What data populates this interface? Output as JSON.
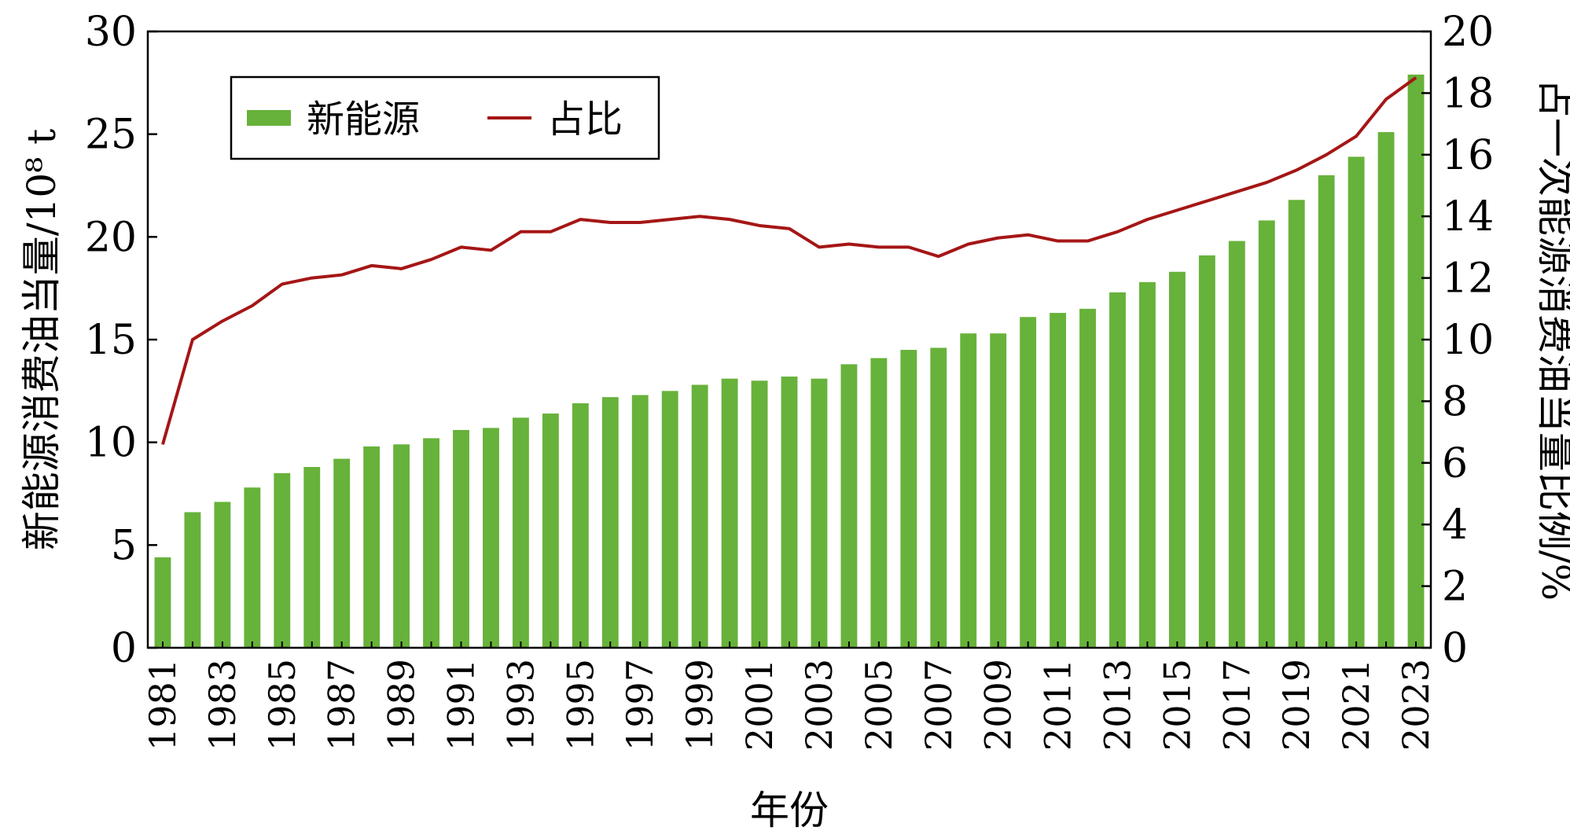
{
  "chart_data": {
    "type": "bar",
    "xlabel": "年份",
    "ylabel_left": "新能源消费油当量/10⁸ t",
    "ylabel_right": "占一次能源消费油当量比例/%",
    "ylim_left": [
      0,
      30
    ],
    "ylim_right": [
      0,
      20
    ],
    "yticks_left": [
      "0",
      "5",
      "10",
      "15",
      "20",
      "25",
      "30"
    ],
    "yticks_right": [
      "0",
      "2",
      "4",
      "6",
      "8",
      "10",
      "12",
      "14",
      "16",
      "18",
      "20"
    ],
    "categories": [
      "1981",
      "1982",
      "1983",
      "1984",
      "1985",
      "1986",
      "1987",
      "1988",
      "1989",
      "1990",
      "1991",
      "1992",
      "1993",
      "1994",
      "1995",
      "1996",
      "1997",
      "1998",
      "1999",
      "2000",
      "2001",
      "2002",
      "2003",
      "2004",
      "2005",
      "2006",
      "2007",
      "2008",
      "2009",
      "2010",
      "2011",
      "2012",
      "2013",
      "2014",
      "2015",
      "2016",
      "2017",
      "2018",
      "2019",
      "2020",
      "2021",
      "2022",
      "2023"
    ],
    "xtick_labels": [
      "1981",
      "1983",
      "1985",
      "1987",
      "1989",
      "1991",
      "1993",
      "1995",
      "1997",
      "1999",
      "2001",
      "2003",
      "2005",
      "2007",
      "2009",
      "2011",
      "2013",
      "2015",
      "2017",
      "2019",
      "2021",
      "2023"
    ],
    "series": [
      {
        "name": "新能源",
        "type": "bar",
        "axis": "left",
        "color": "#67b23a",
        "values": [
          4.4,
          6.6,
          7.1,
          7.8,
          8.5,
          8.8,
          9.2,
          9.8,
          9.9,
          10.2,
          10.6,
          10.7,
          11.2,
          11.4,
          11.9,
          12.2,
          12.3,
          12.5,
          12.8,
          13.1,
          13.0,
          13.2,
          13.1,
          13.8,
          14.1,
          14.5,
          14.6,
          15.3,
          15.3,
          16.1,
          16.3,
          16.5,
          17.3,
          17.8,
          18.3,
          19.1,
          19.8,
          20.8,
          21.8,
          23.0,
          23.9,
          25.1,
          27.9
        ]
      },
      {
        "name": "占比",
        "type": "line",
        "axis": "right",
        "color": "#a51616",
        "values": [
          6.6,
          10.0,
          10.6,
          11.1,
          11.8,
          12.0,
          12.1,
          12.4,
          12.3,
          12.6,
          13.0,
          12.9,
          13.5,
          13.5,
          13.9,
          13.8,
          13.8,
          13.9,
          14.0,
          13.9,
          13.7,
          13.6,
          13.0,
          13.1,
          13.0,
          13.0,
          12.7,
          13.1,
          13.3,
          13.4,
          13.2,
          13.2,
          13.5,
          13.9,
          14.2,
          14.5,
          14.8,
          15.1,
          15.5,
          16.0,
          16.6,
          17.8,
          18.5
        ]
      }
    ],
    "legend": {
      "placement": "top-left",
      "entries": [
        "新能源",
        "占比"
      ]
    }
  }
}
